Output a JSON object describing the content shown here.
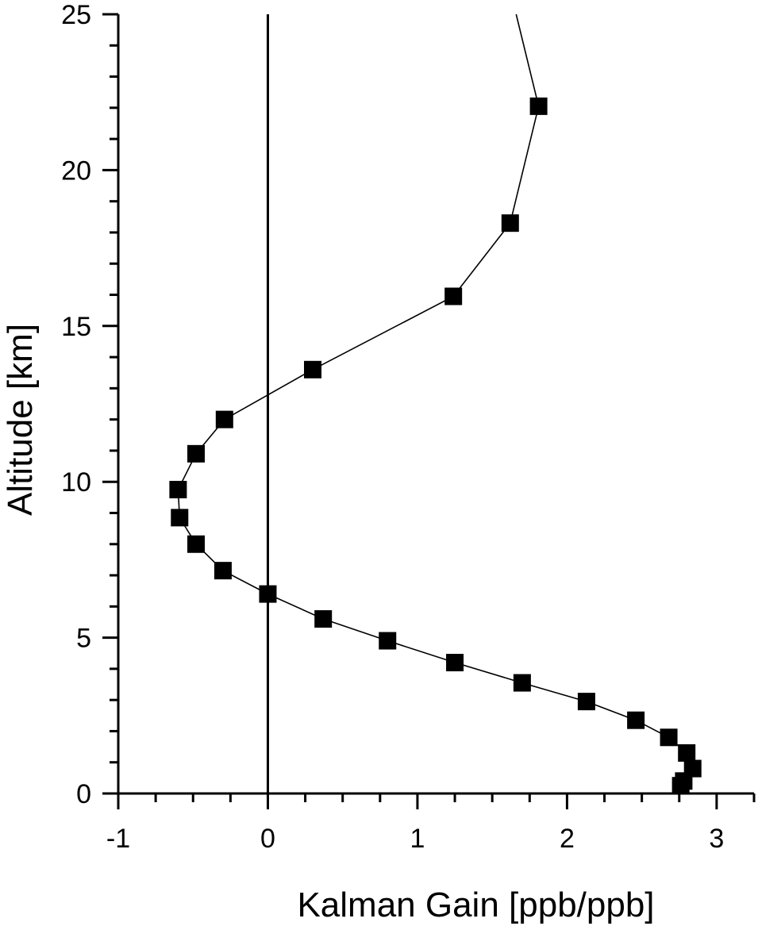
{
  "chart_data": {
    "type": "line",
    "title": "",
    "xlabel": "Kalman Gain [ppb/ppb]",
    "ylabel": "Altitude [km]",
    "xlim": [
      -1,
      3.25
    ],
    "ylim": [
      0,
      25
    ],
    "x_major_ticks": [
      -1,
      0,
      1,
      2,
      3
    ],
    "x_tick_labels": [
      "-1",
      "0",
      "1",
      "2",
      "3"
    ],
    "x_minor_step": 0.25,
    "y_major_ticks": [
      0,
      5,
      10,
      15,
      20,
      25
    ],
    "y_tick_labels": [
      "0",
      "5",
      "10",
      "15",
      "20",
      "25"
    ],
    "y_minor_step": 1,
    "reference_line_x": 0,
    "grid": false,
    "series": [
      {
        "marker": "square",
        "color": "#000000",
        "points": [
          [
            2.76,
            0.25
          ],
          [
            2.78,
            0.4
          ],
          [
            2.84,
            0.8
          ],
          [
            2.8,
            1.3
          ],
          [
            2.68,
            1.8
          ],
          [
            2.46,
            2.35
          ],
          [
            2.13,
            2.95
          ],
          [
            1.7,
            3.55
          ],
          [
            1.25,
            4.2
          ],
          [
            0.8,
            4.9
          ],
          [
            0.37,
            5.6
          ],
          [
            0.0,
            6.4
          ],
          [
            -0.3,
            7.15
          ],
          [
            -0.48,
            8.0
          ],
          [
            -0.59,
            8.85
          ],
          [
            -0.6,
            9.75
          ],
          [
            -0.48,
            10.9
          ],
          [
            -0.29,
            12.0
          ],
          [
            0.3,
            13.6
          ],
          [
            1.24,
            15.95
          ],
          [
            1.62,
            18.3
          ],
          [
            1.81,
            22.05
          ]
        ],
        "line_extension_top": [
          1.66,
          25.0
        ]
      }
    ]
  }
}
